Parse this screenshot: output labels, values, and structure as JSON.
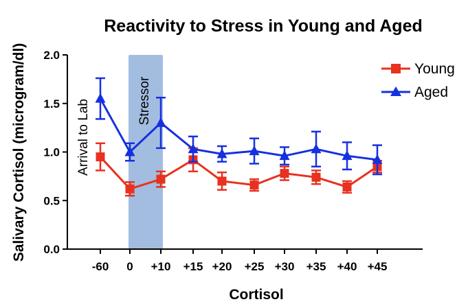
{
  "chart_data": {
    "type": "line",
    "title": "Reactivity to Stress in Young and Aged",
    "xlabel": "Cortisol",
    "ylabel": "Salivary Cortisol (microgram/dl)",
    "categories": [
      "-60",
      "0",
      "+10",
      "+15",
      "+20",
      "+25",
      "+30",
      "+35",
      "+40",
      "+45"
    ],
    "ylim": [
      0.0,
      2.0
    ],
    "yticks": [
      "0.0",
      "0.5",
      "1.0",
      "1.5",
      "2.0"
    ],
    "legend_position": "top-right",
    "series": [
      {
        "name": "Young",
        "color": "#e8311f",
        "marker": "square",
        "values": [
          0.95,
          0.62,
          0.72,
          0.92,
          0.7,
          0.66,
          0.78,
          0.74,
          0.64,
          0.85
        ],
        "errors": [
          0.14,
          0.07,
          0.08,
          0.12,
          0.09,
          0.06,
          0.07,
          0.07,
          0.06,
          0.06
        ]
      },
      {
        "name": "Aged",
        "color": "#1530e0",
        "marker": "triangle",
        "values": [
          1.55,
          1.0,
          1.3,
          1.03,
          0.98,
          1.01,
          0.96,
          1.03,
          0.96,
          0.92
        ],
        "errors": [
          0.21,
          0.09,
          0.26,
          0.13,
          0.08,
          0.13,
          0.09,
          0.18,
          0.14,
          0.15
        ]
      }
    ],
    "shaded_region": {
      "from": "0",
      "to": "+10",
      "label": "Stressor",
      "color": "#a3bde0"
    },
    "annotations": [
      {
        "text": "Arrival to Lab",
        "category": "-60"
      }
    ]
  }
}
